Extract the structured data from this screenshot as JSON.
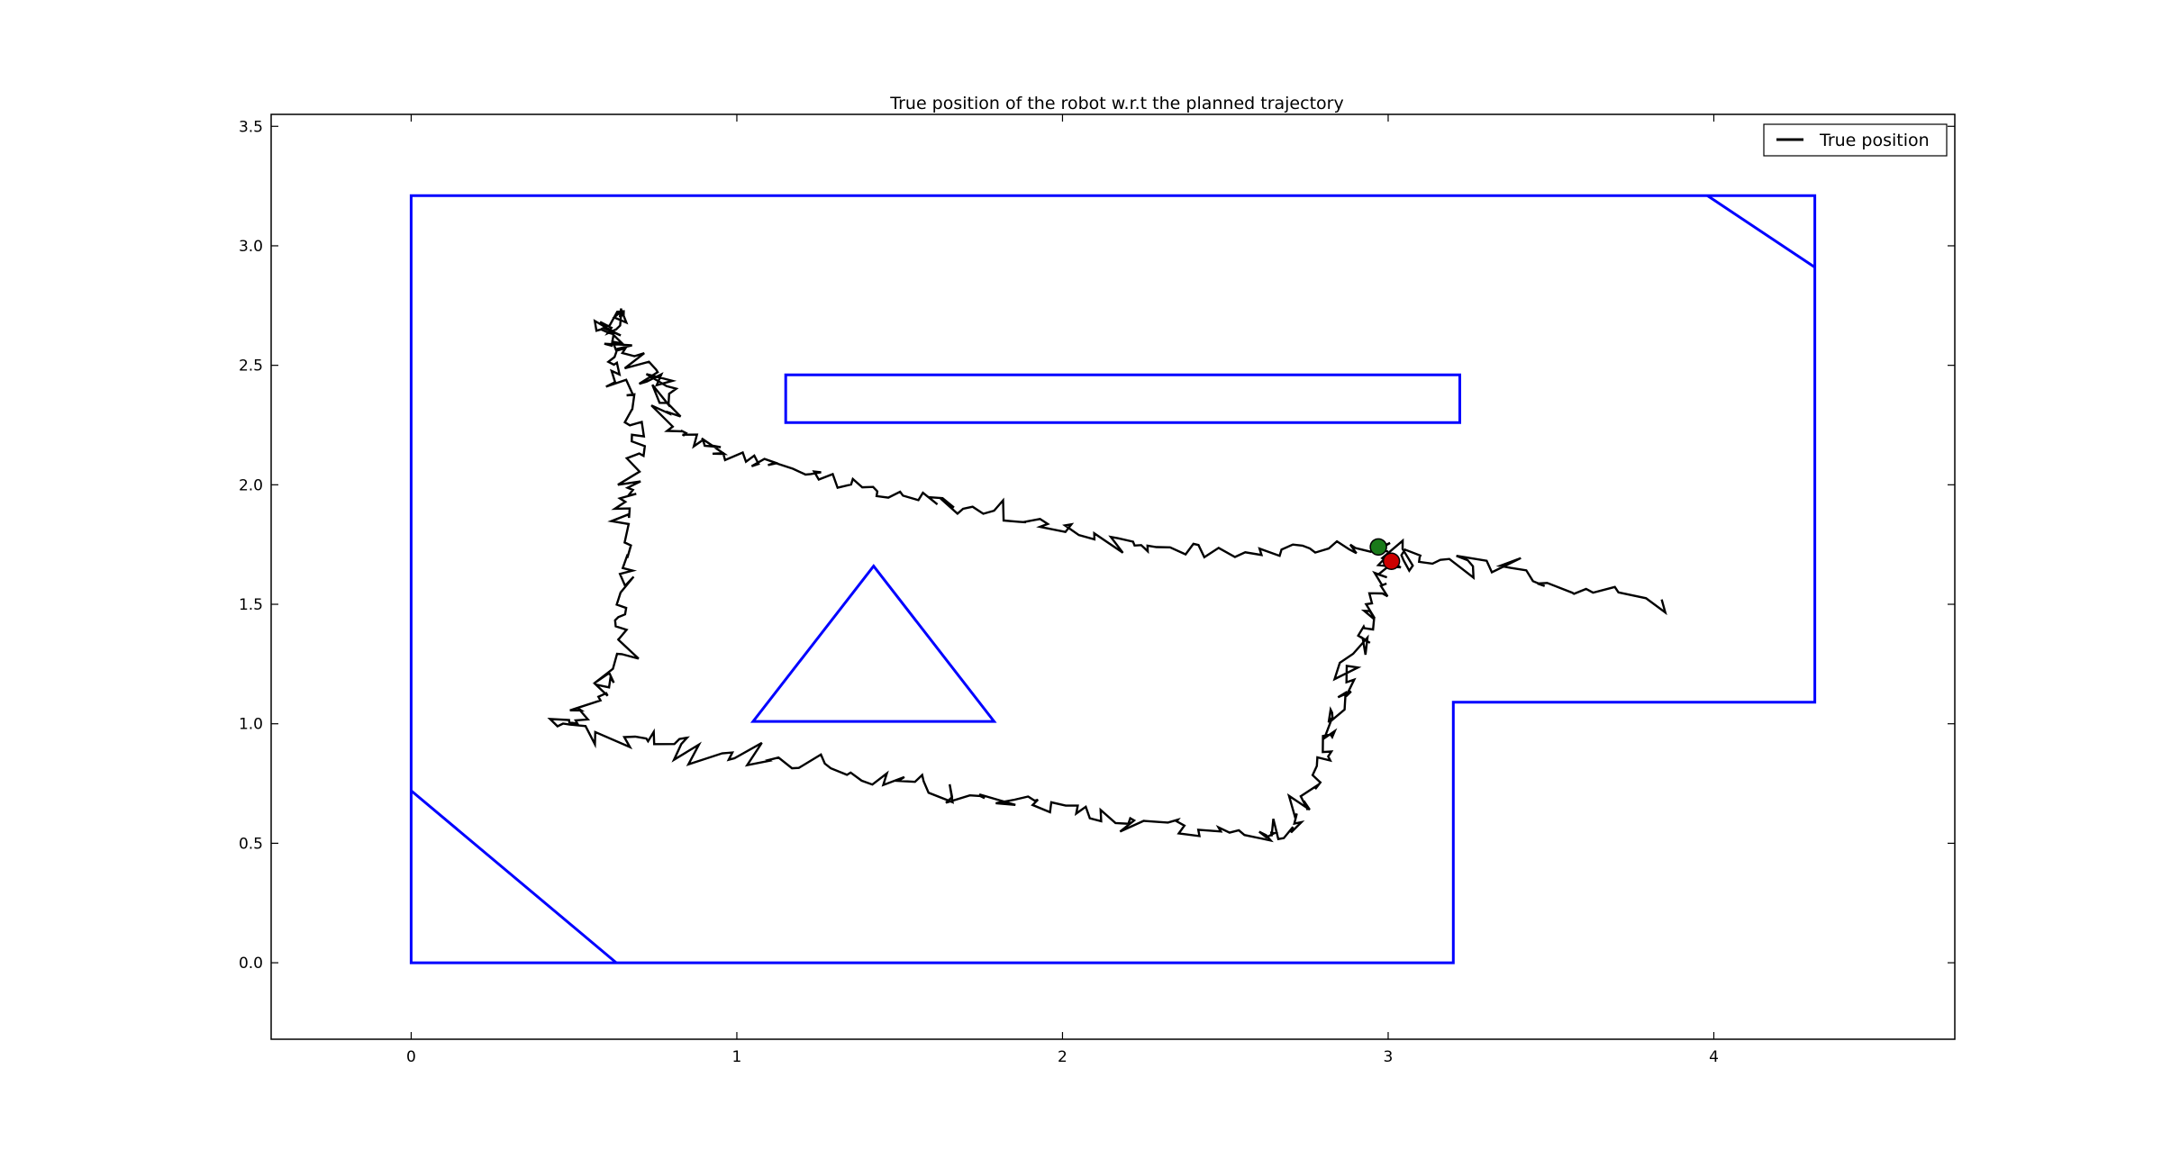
{
  "chart_data": {
    "type": "line",
    "title": "True position of the robot w.r.t the planned trajectory",
    "xlabel": "",
    "ylabel": "",
    "xlim": [
      -0.43,
      4.74
    ],
    "ylim": [
      -0.32,
      3.55
    ],
    "x_ticks": [
      0,
      1,
      2,
      3,
      4
    ],
    "x_tick_labels": [
      "0",
      "1",
      "2",
      "3",
      "4"
    ],
    "y_ticks": [
      0.0,
      0.5,
      1.0,
      1.5,
      2.0,
      2.5,
      3.0,
      3.5
    ],
    "y_tick_labels": [
      "0.0",
      "0.5",
      "1.0",
      "1.5",
      "2.0",
      "2.5",
      "3.0",
      "3.5"
    ],
    "grid": false,
    "legend": {
      "placement": "top-right",
      "entries": [
        "True position"
      ]
    },
    "colors": {
      "obstacles": "#0000ff",
      "trajectory": "#000000",
      "start_marker": "#1a7a1a",
      "end_marker": "#cc0000"
    },
    "obstacles": [
      {
        "name": "outer-boundary",
        "closed": true,
        "points": [
          [
            0,
            0
          ],
          [
            3.2,
            0
          ],
          [
            3.2,
            1.09
          ],
          [
            4.31,
            1.09
          ],
          [
            4.31,
            3.21
          ],
          [
            0,
            3.21
          ]
        ]
      },
      {
        "name": "corner-bottom-left",
        "closed": false,
        "points": [
          [
            0,
            0.72
          ],
          [
            0.63,
            0
          ]
        ]
      },
      {
        "name": "corner-top-right",
        "closed": false,
        "points": [
          [
            3.98,
            3.21
          ],
          [
            4.31,
            2.91
          ]
        ]
      },
      {
        "name": "rectangle",
        "closed": true,
        "points": [
          [
            1.15,
            2.26
          ],
          [
            3.22,
            2.26
          ],
          [
            3.22,
            2.46
          ],
          [
            1.15,
            2.46
          ]
        ]
      },
      {
        "name": "triangle",
        "closed": true,
        "points": [
          [
            1.05,
            1.01
          ],
          [
            1.79,
            1.01
          ],
          [
            1.42,
            1.66
          ]
        ]
      }
    ],
    "series": [
      {
        "name": "True position",
        "waypoints": [
          [
            3.0,
            1.72
          ],
          [
            2.85,
            1.74
          ],
          [
            2.6,
            1.72
          ],
          [
            2.3,
            1.74
          ],
          [
            2.1,
            1.78
          ],
          [
            1.9,
            1.84
          ],
          [
            1.7,
            1.9
          ],
          [
            1.5,
            1.96
          ],
          [
            1.3,
            2.02
          ],
          [
            1.1,
            2.08
          ],
          [
            0.95,
            2.14
          ],
          [
            0.85,
            2.2
          ],
          [
            0.78,
            2.28
          ],
          [
            0.8,
            2.4
          ],
          [
            0.72,
            2.52
          ],
          [
            0.62,
            2.62
          ],
          [
            0.65,
            2.72
          ],
          [
            0.58,
            2.66
          ],
          [
            0.62,
            2.56
          ],
          [
            0.66,
            2.4
          ],
          [
            0.7,
            2.2
          ],
          [
            0.68,
            2.0
          ],
          [
            0.64,
            1.85
          ],
          [
            0.66,
            1.6
          ],
          [
            0.65,
            1.4
          ],
          [
            0.62,
            1.2
          ],
          [
            0.56,
            1.06
          ],
          [
            0.45,
            1.0
          ],
          [
            0.7,
            0.96
          ],
          [
            0.9,
            0.9
          ],
          [
            1.1,
            0.84
          ],
          [
            1.4,
            0.78
          ],
          [
            1.6,
            0.73
          ],
          [
            1.8,
            0.7
          ],
          [
            2.0,
            0.64
          ],
          [
            2.2,
            0.6
          ],
          [
            2.4,
            0.56
          ],
          [
            2.6,
            0.53
          ],
          [
            2.7,
            0.55
          ],
          [
            2.75,
            0.7
          ],
          [
            2.8,
            0.85
          ],
          [
            2.82,
            1.0
          ],
          [
            2.86,
            1.15
          ],
          [
            2.92,
            1.3
          ],
          [
            2.95,
            1.45
          ],
          [
            2.98,
            1.58
          ],
          [
            3.0,
            1.72
          ],
          [
            3.1,
            1.7
          ],
          [
            3.3,
            1.66
          ],
          [
            3.5,
            1.58
          ],
          [
            3.84,
            1.52
          ]
        ],
        "noise_amplitude": 0.028,
        "samples_per_segment": 9
      }
    ],
    "markers": [
      {
        "name": "start",
        "x": 2.97,
        "y": 1.74,
        "color": "#1a7a1a"
      },
      {
        "name": "end",
        "x": 3.01,
        "y": 1.68,
        "color": "#cc0000"
      }
    ]
  }
}
